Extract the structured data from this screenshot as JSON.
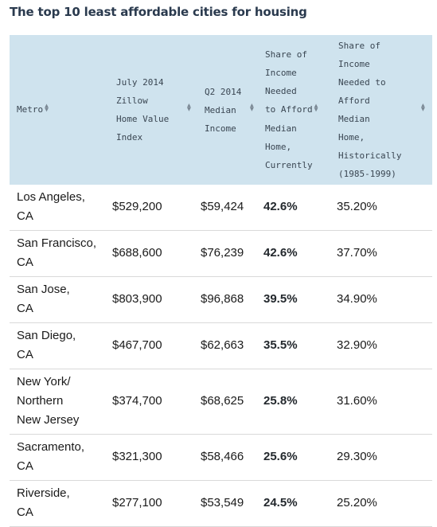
{
  "title": "The top 10 least affordable cities for housing",
  "table": {
    "headers": [
      {
        "lines": [
          "Metro"
        ]
      },
      {
        "lines": [
          "July 2014",
          "Zillow",
          "Home Value",
          "Index"
        ]
      },
      {
        "lines": [
          "Q2 2014",
          "Median",
          "Income"
        ]
      },
      {
        "lines": [
          "Share of",
          "Income",
          "Needed",
          "to Afford",
          "Median",
          "Home,",
          "Currently"
        ]
      },
      {
        "lines": [
          "Share of",
          "Income",
          "Needed to",
          "Afford",
          "Median",
          "Home,",
          "Historically",
          "(1985-1999)"
        ]
      }
    ],
    "sort_icon": "sort-arrows-icon",
    "rows": [
      {
        "metro": [
          "Los Angeles,",
          "CA"
        ],
        "zhvi": "$529,200",
        "income": "$59,424",
        "current": "42.6%",
        "historical": "35.20%"
      },
      {
        "metro": [
          "San Francisco,",
          "CA"
        ],
        "zhvi": "$688,600",
        "income": "$76,239",
        "current": "42.6%",
        "historical": "37.70%"
      },
      {
        "metro": [
          "San Jose,",
          "CA"
        ],
        "zhvi": "$803,900",
        "income": "$96,868",
        "current": "39.5%",
        "historical": "34.90%"
      },
      {
        "metro": [
          "San Diego,",
          "CA"
        ],
        "zhvi": "$467,700",
        "income": "$62,663",
        "current": "35.5%",
        "historical": "32.90%"
      },
      {
        "metro": [
          "New York/",
          "Northern",
          "New Jersey"
        ],
        "zhvi": "$374,700",
        "income": "$68,625",
        "current": "25.8%",
        "historical": "31.60%"
      },
      {
        "metro": [
          "Sacramento,",
          "CA"
        ],
        "zhvi": "$321,300",
        "income": "$58,466",
        "current": "25.6%",
        "historical": "29.30%"
      },
      {
        "metro": [
          "Riverside,",
          "CA"
        ],
        "zhvi": "$277,100",
        "income": "$53,549",
        "current": "24.5%",
        "historical": "25.20%"
      }
    ]
  },
  "colors": {
    "header_bg": "#cfe3ee",
    "title": "#2a3a4e"
  }
}
